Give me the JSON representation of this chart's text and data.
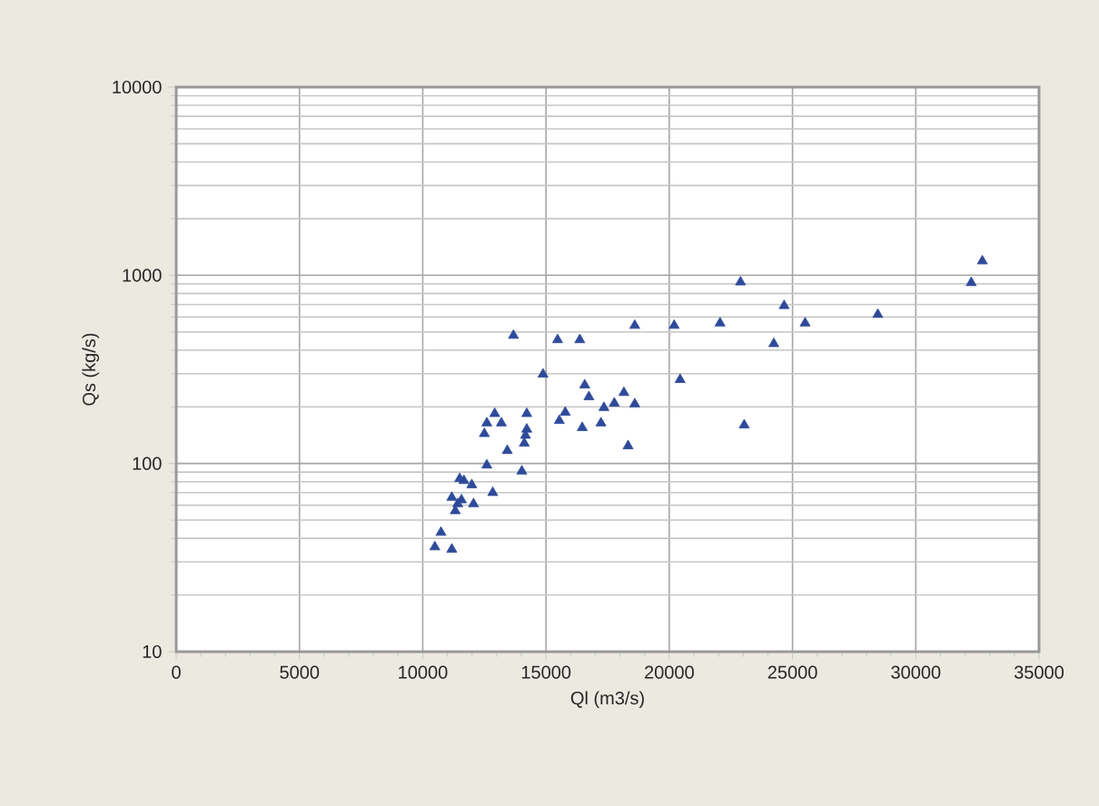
{
  "chart_data": {
    "type": "scatter",
    "xlabel": "Ql (m3/s)",
    "ylabel": "Qs (kg/s)",
    "xlim": [
      0,
      35000
    ],
    "xticks": [
      0,
      5000,
      10000,
      15000,
      20000,
      25000,
      30000,
      35000
    ],
    "ylim": [
      10,
      10000
    ],
    "yticks": [
      10,
      100,
      1000,
      10000
    ],
    "log": "y",
    "grid": true,
    "marker": "triangle",
    "series": [
      {
        "color": "#2e4a9a",
        "x": [
          10490,
          11180,
          10740,
          11320,
          11180,
          11570,
          11420,
          12060,
          11500,
          11670,
          11990,
          12840,
          12600,
          14020,
          13430,
          12500,
          12600,
          12920,
          13190,
          14120,
          14170,
          14220,
          14220,
          13680,
          14880,
          15470,
          16370,
          15540,
          15780,
          16470,
          16570,
          16740,
          17230,
          17350,
          17770,
          18160,
          18600,
          18330,
          18600,
          20200,
          20440,
          22060,
          22890,
          23040,
          24240,
          24660,
          25510,
          28460,
          32250,
          32700
        ],
        "values": [
          36,
          35,
          43,
          56,
          66,
          64,
          61,
          61,
          83,
          81,
          77,
          70,
          98,
          91,
          117,
          144,
          164,
          184,
          164,
          128,
          141,
          152,
          184,
          479,
          298,
          454,
          454,
          169,
          187,
          155,
          261,
          226,
          164,
          198,
          209,
          238,
          207,
          124,
          541,
          541,
          279,
          557,
          920,
          160,
          433,
          689,
          557,
          619,
          913,
          1190
        ]
      }
    ]
  }
}
